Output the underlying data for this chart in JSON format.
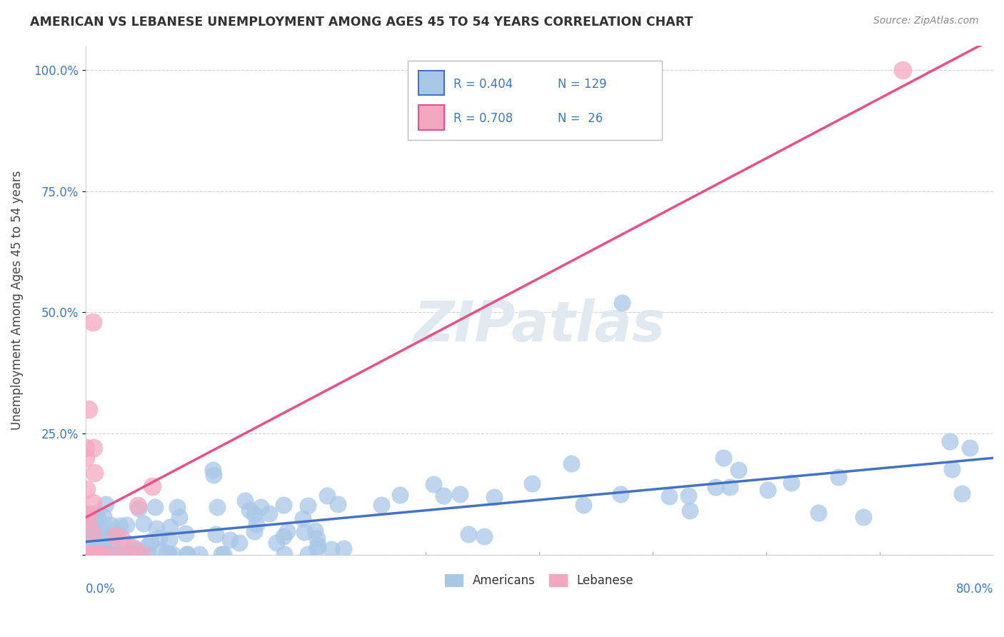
{
  "title": "AMERICAN VS LEBANESE UNEMPLOYMENT AMONG AGES 45 TO 54 YEARS CORRELATION CHART",
  "source": "Source: ZipAtlas.com",
  "ylabel": "Unemployment Among Ages 45 to 54 years",
  "watermark": "ZIPatlas",
  "legend_entries": [
    {
      "label": "Americans",
      "R": 0.404,
      "N": 129
    },
    {
      "label": "Lebanese",
      "R": 0.708,
      "N": 26
    }
  ],
  "americans_line_color": "#4472c4",
  "lebanese_line_color": "#e8508a",
  "americans_scatter_color": "#a8c8e8",
  "lebanese_scatter_color": "#f4a8c0",
  "background_color": "#ffffff",
  "grid_color": "#cccccc",
  "xlim": [
    0,
    0.8
  ],
  "ylim": [
    0,
    1.05
  ]
}
